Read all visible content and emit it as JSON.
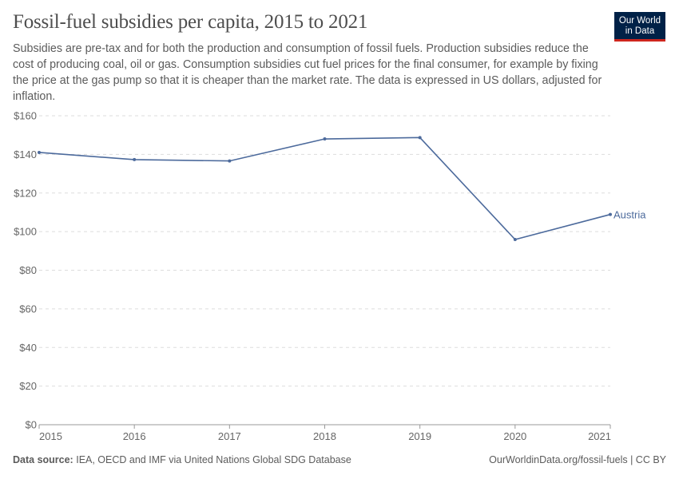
{
  "header": {
    "title": "Fossil-fuel subsidies per capita, 2015 to 2021",
    "subtitle": "Subsidies are pre-tax and for both the production and consumption of fossil fuels. Production subsidies reduce the cost of producing coal, oil or gas. Consumption subsidies cut fuel prices for the final consumer, for example by fixing the price at the gas pump so that it is cheaper than the market rate. The data is expressed in US dollars, adjusted for inflation.",
    "logo": "Our World in Data"
  },
  "footer": {
    "source_label": "Data source:",
    "source": "IEA, OECD and IMF via United Nations Global SDG Database",
    "link": "OurWorldinData.org/fossil-fuels | CC BY"
  },
  "chart_data": {
    "type": "line",
    "title": "Fossil-fuel subsidies per capita, 2015 to 2021",
    "x": [
      2015,
      2016,
      2017,
      2018,
      2019,
      2020,
      2021
    ],
    "x_tick_labels": [
      "2015",
      "2016",
      "2017",
      "2018",
      "2019",
      "2020",
      "2021"
    ],
    "y_ticks": [
      0,
      20,
      40,
      60,
      80,
      100,
      120,
      140,
      160
    ],
    "y_tick_labels": [
      "$0",
      "$20",
      "$40",
      "$60",
      "$80",
      "$100",
      "$120",
      "$140",
      "$160"
    ],
    "ylim": [
      0,
      160
    ],
    "grid": "horizontal dashed",
    "legend": "inline-right",
    "series": [
      {
        "name": "Austria",
        "color": "#4c6a9c",
        "values": [
          141.0,
          137.3,
          136.6,
          148.0,
          148.7,
          95.9,
          108.9
        ]
      }
    ]
  }
}
